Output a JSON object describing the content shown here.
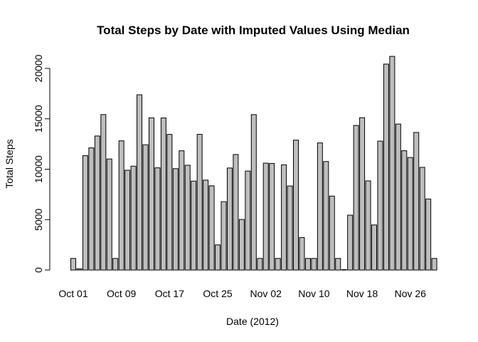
{
  "chart_data": {
    "type": "bar",
    "title": "Total Steps by Date with Imputed Values Using Median",
    "xlabel": "Date (2012)",
    "ylabel": "Total Steps",
    "ylim": [
      0,
      21500
    ],
    "y_ticks": [
      0,
      5000,
      10000,
      15000,
      20000
    ],
    "x_tick_labels": [
      "Oct 01",
      "Oct 09",
      "Oct 17",
      "Oct 25",
      "Nov 02",
      "Nov 10",
      "Nov 18",
      "Nov 26"
    ],
    "categories": [
      "2012-10-01",
      "2012-10-02",
      "2012-10-03",
      "2012-10-04",
      "2012-10-05",
      "2012-10-06",
      "2012-10-07",
      "2012-10-08",
      "2012-10-09",
      "2012-10-10",
      "2012-10-11",
      "2012-10-12",
      "2012-10-13",
      "2012-10-14",
      "2012-10-15",
      "2012-10-16",
      "2012-10-17",
      "2012-10-18",
      "2012-10-19",
      "2012-10-20",
      "2012-10-21",
      "2012-10-22",
      "2012-10-23",
      "2012-10-24",
      "2012-10-25",
      "2012-10-26",
      "2012-10-27",
      "2012-10-28",
      "2012-10-29",
      "2012-10-30",
      "2012-10-31",
      "2012-11-01",
      "2012-11-02",
      "2012-11-03",
      "2012-11-04",
      "2012-11-05",
      "2012-11-06",
      "2012-11-07",
      "2012-11-08",
      "2012-11-09",
      "2012-11-10",
      "2012-11-11",
      "2012-11-12",
      "2012-11-13",
      "2012-11-14",
      "2012-11-15",
      "2012-11-16",
      "2012-11-17",
      "2012-11-18",
      "2012-11-19",
      "2012-11-20",
      "2012-11-21",
      "2012-11-22",
      "2012-11-23",
      "2012-11-24",
      "2012-11-25",
      "2012-11-26",
      "2012-11-27",
      "2012-11-28",
      "2012-11-29",
      "2012-11-30"
    ],
    "values": [
      1150,
      126,
      11352,
      12116,
      13294,
      15420,
      11015,
      1150,
      12811,
      9900,
      10304,
      17382,
      12426,
      15098,
      10139,
      15084,
      13452,
      10056,
      11829,
      10395,
      8821,
      13460,
      8918,
      8355,
      2492,
      6778,
      10119,
      11458,
      5018,
      9819,
      15414,
      1150,
      10600,
      10571,
      1150,
      10439,
      8334,
      12883,
      3219,
      1150,
      1150,
      12608,
      10765,
      7336,
      1150,
      41,
      5441,
      14339,
      15110,
      8841,
      4472,
      12787,
      20427,
      21194,
      14478,
      11834,
      11162,
      13646,
      10183,
      7047,
      1150
    ],
    "grid": false,
    "legend": "none",
    "colors": {
      "bar_fill": "#bebebe",
      "bar_stroke": "#000000"
    }
  }
}
